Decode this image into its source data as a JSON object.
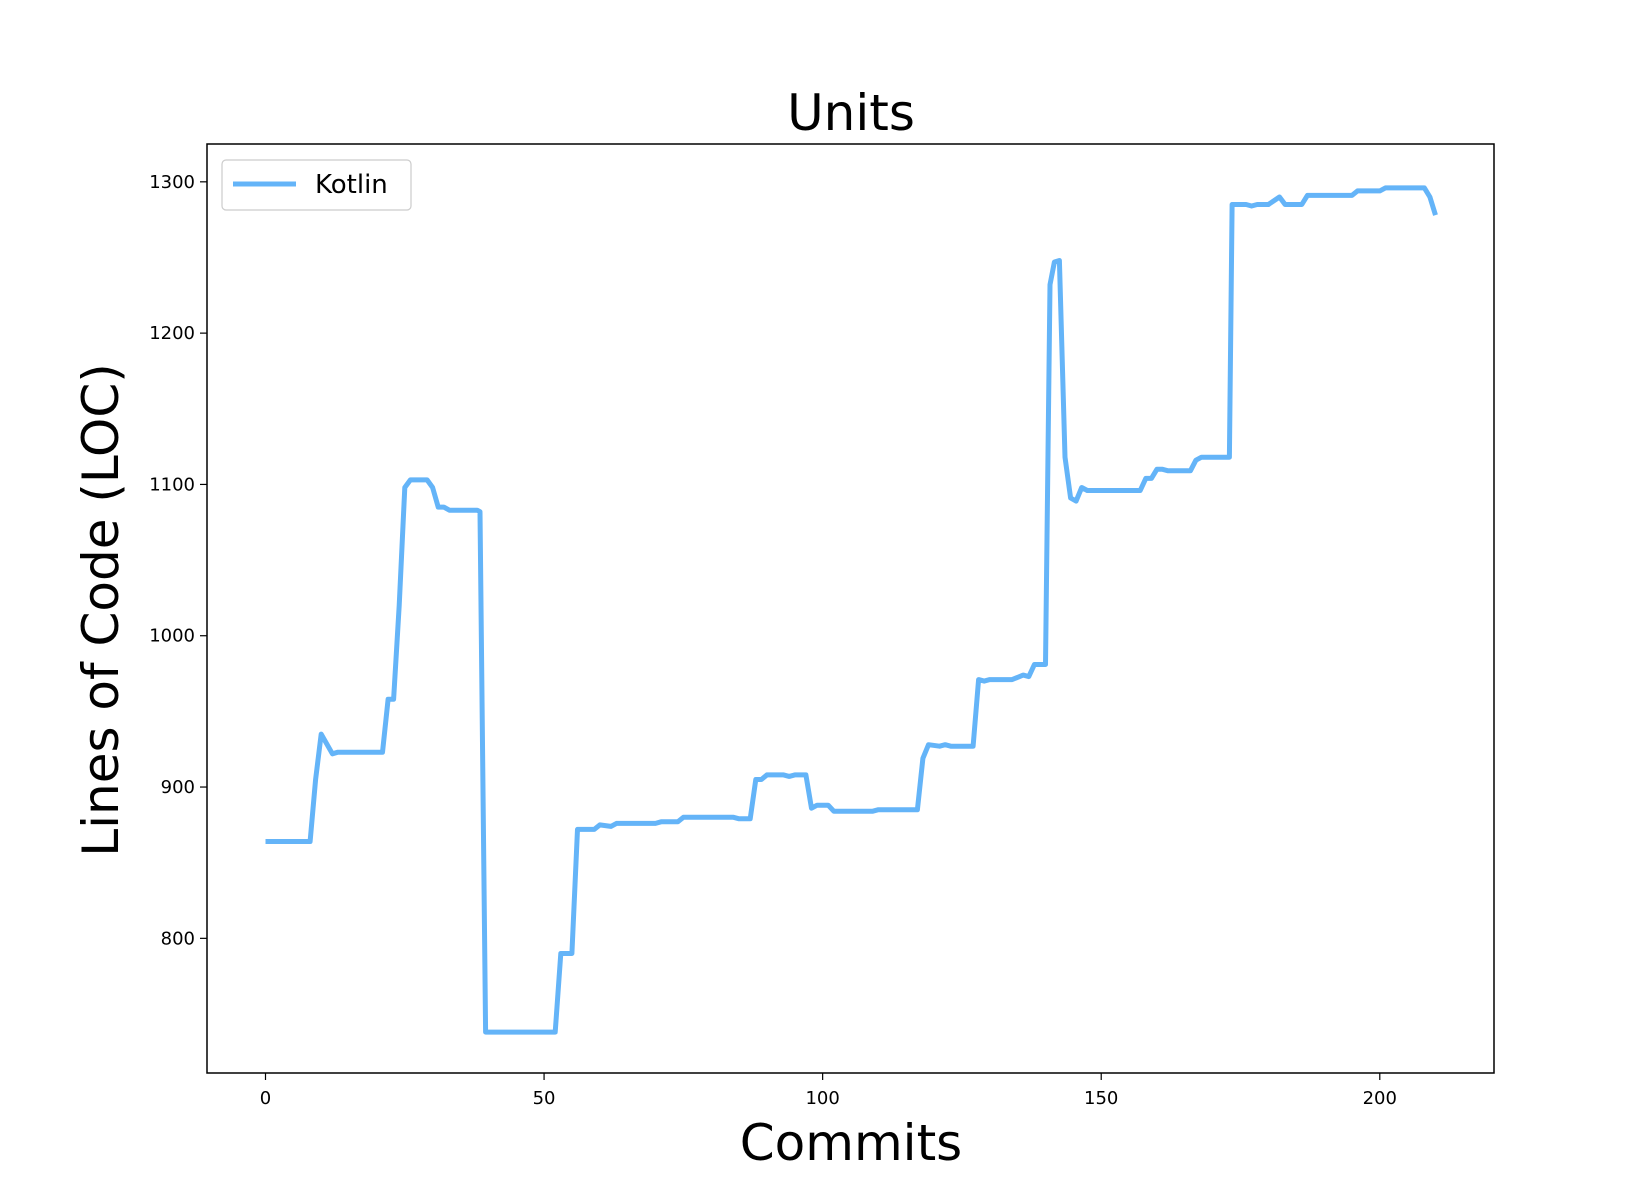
{
  "chart_data": {
    "type": "line",
    "title": "Units",
    "xlabel": "Commits",
    "ylabel": "Lines of Code (LOC)",
    "xlim": [
      -10.5,
      220.5
    ],
    "ylim": [
      711,
      1325
    ],
    "xticks": [
      0,
      50,
      100,
      150,
      200
    ],
    "yticks": [
      800,
      900,
      1000,
      1100,
      1200,
      1300
    ],
    "legend_position": "top-left",
    "grid": false,
    "series": [
      {
        "name": "Kotlin",
        "color": "#64B4F8",
        "points": [
          [
            0,
            864
          ],
          [
            8,
            864
          ],
          [
            9,
            905
          ],
          [
            10,
            935
          ],
          [
            12,
            922
          ],
          [
            13,
            923
          ],
          [
            21,
            923
          ],
          [
            22,
            958
          ],
          [
            23,
            958
          ],
          [
            24,
            1020
          ],
          [
            25,
            1098
          ],
          [
            26,
            1103
          ],
          [
            29,
            1103
          ],
          [
            30,
            1098
          ],
          [
            31,
            1085
          ],
          [
            32,
            1085
          ],
          [
            33,
            1083
          ],
          [
            38,
            1083
          ],
          [
            38.5,
            1082
          ],
          [
            39.5,
            738
          ],
          [
            52,
            738
          ],
          [
            53,
            790
          ],
          [
            55,
            790
          ],
          [
            56,
            872
          ],
          [
            59,
            872
          ],
          [
            60,
            875
          ],
          [
            62,
            874
          ],
          [
            63,
            876
          ],
          [
            70,
            876
          ],
          [
            71,
            877
          ],
          [
            74,
            877
          ],
          [
            75,
            880
          ],
          [
            84,
            880
          ],
          [
            85,
            879
          ],
          [
            87,
            879
          ],
          [
            88,
            905
          ],
          [
            89,
            905
          ],
          [
            90,
            908
          ],
          [
            93,
            908
          ],
          [
            94,
            907
          ],
          [
            95,
            908
          ],
          [
            97,
            908
          ],
          [
            98,
            886
          ],
          [
            99,
            888
          ],
          [
            101,
            888
          ],
          [
            102,
            884
          ],
          [
            109,
            884
          ],
          [
            110,
            885
          ],
          [
            117,
            885
          ],
          [
            118,
            919
          ],
          [
            119,
            928
          ],
          [
            121,
            927
          ],
          [
            122,
            928
          ],
          [
            123,
            927
          ],
          [
            127,
            927
          ],
          [
            128,
            971
          ],
          [
            129,
            970
          ],
          [
            130,
            971
          ],
          [
            134,
            971
          ],
          [
            136,
            974
          ],
          [
            137,
            973
          ],
          [
            138,
            981
          ],
          [
            140,
            981
          ],
          [
            140.8,
            1232
          ],
          [
            141.6,
            1247
          ],
          [
            142.5,
            1248
          ],
          [
            143.5,
            1118
          ],
          [
            144.5,
            1091
          ],
          [
            145.5,
            1089
          ],
          [
            146.5,
            1098
          ],
          [
            147.5,
            1096
          ],
          [
            157,
            1096
          ],
          [
            158,
            1104
          ],
          [
            159,
            1104
          ],
          [
            160,
            1110
          ],
          [
            161,
            1110
          ],
          [
            162,
            1109
          ],
          [
            166,
            1109
          ],
          [
            167,
            1116
          ],
          [
            168,
            1118
          ],
          [
            173,
            1118
          ],
          [
            173.5,
            1285
          ],
          [
            176,
            1285
          ],
          [
            177,
            1284
          ],
          [
            178,
            1285
          ],
          [
            180,
            1285
          ],
          [
            182,
            1290
          ],
          [
            183,
            1285
          ],
          [
            186,
            1285
          ],
          [
            187,
            1291
          ],
          [
            195,
            1291
          ],
          [
            196,
            1294
          ],
          [
            200,
            1294
          ],
          [
            201,
            1296
          ],
          [
            208,
            1296
          ],
          [
            209,
            1290
          ],
          [
            210,
            1278
          ]
        ]
      }
    ]
  }
}
